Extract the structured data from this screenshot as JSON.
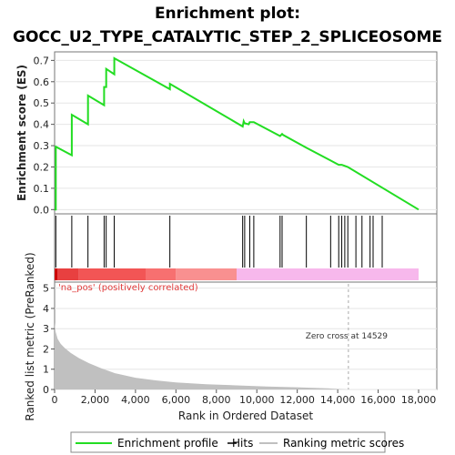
{
  "chart_data": {
    "type": "line",
    "title_line1": "Enrichment plot:",
    "title_line2": "GOCC_U2_TYPE_CATALYTIC_STEP_2_SPLICEOSOME",
    "es_panel": {
      "ylabel": "Enrichment score (ES)",
      "ylim": [
        -0.02,
        0.74
      ],
      "yticks": [
        "0.0",
        "0.1",
        "0.2",
        "0.3",
        "0.4",
        "0.5",
        "0.6",
        "0.7"
      ],
      "series_name": "Enrichment profile",
      "color": "#22dd22",
      "x": [
        0,
        60,
        60,
        850,
        850,
        1650,
        1650,
        2450,
        2450,
        2550,
        2550,
        2950,
        2950,
        5700,
        5700,
        9300,
        9350,
        9400,
        9600,
        9650,
        9850,
        11150,
        11250,
        11300,
        12450,
        13650,
        14050,
        14200,
        14500,
        18000
      ],
      "y": [
        0.0,
        0.0,
        0.295,
        0.255,
        0.445,
        0.4,
        0.535,
        0.49,
        0.575,
        0.575,
        0.66,
        0.635,
        0.71,
        0.565,
        0.59,
        0.39,
        0.415,
        0.405,
        0.4,
        0.41,
        0.41,
        0.345,
        0.355,
        0.35,
        0.29,
        0.23,
        0.21,
        0.21,
        0.2,
        0.0
      ]
    },
    "hits": {
      "series_name": "Hits",
      "positions": [
        60,
        850,
        1650,
        2450,
        2550,
        2950,
        5700,
        9300,
        9400,
        9650,
        9850,
        11150,
        11250,
        12450,
        13650,
        14050,
        14200,
        14350,
        14500,
        14900,
        15200,
        15600,
        15750,
        16200
      ]
    },
    "heatmap_bar": {
      "segments": [
        {
          "from": 0,
          "to": 150,
          "color": "#cc0000"
        },
        {
          "from": 150,
          "to": 1200,
          "color": "#e84040"
        },
        {
          "from": 1200,
          "to": 4500,
          "color": "#f25555"
        },
        {
          "from": 4500,
          "to": 6000,
          "color": "#f77070"
        },
        {
          "from": 6000,
          "to": 9000,
          "color": "#f99090"
        },
        {
          "from": 9000,
          "to": 18000,
          "color": "#f7b8ec"
        }
      ]
    },
    "rank_panel": {
      "ylabel": "Ranked list metric (PreRanked)",
      "ylim": [
        0,
        5.3
      ],
      "yticks": [
        "0",
        "1",
        "2",
        "3",
        "4",
        "5"
      ],
      "series_name": "Ranking metric scores",
      "color": "#c0c0c0",
      "x": [
        0,
        50,
        150,
        300,
        500,
        800,
        1200,
        1700,
        2300,
        3000,
        4000,
        5000,
        6000,
        7500,
        9000,
        10500,
        12000,
        13500,
        14529,
        18000
      ],
      "y": [
        3.3,
        2.85,
        2.5,
        2.25,
        2.05,
        1.8,
        1.55,
        1.3,
        1.05,
        0.8,
        0.58,
        0.45,
        0.35,
        0.26,
        0.2,
        0.15,
        0.11,
        0.06,
        0.0,
        0.0
      ],
      "pos_label": "'na_pos' (positively correlated)",
      "zero_cross_label": "Zero cross at 14529",
      "zero_cross_x": 14529
    },
    "xlabel": "Rank in Ordered Dataset",
    "xlim": [
      0,
      18900
    ],
    "xticks": [
      "0",
      "2,000",
      "4,000",
      "6,000",
      "8,000",
      "10,000",
      "12,000",
      "14,000",
      "16,000",
      "18,000"
    ],
    "legend": [
      "Enrichment profile",
      "Hits",
      "Ranking metric scores"
    ]
  }
}
